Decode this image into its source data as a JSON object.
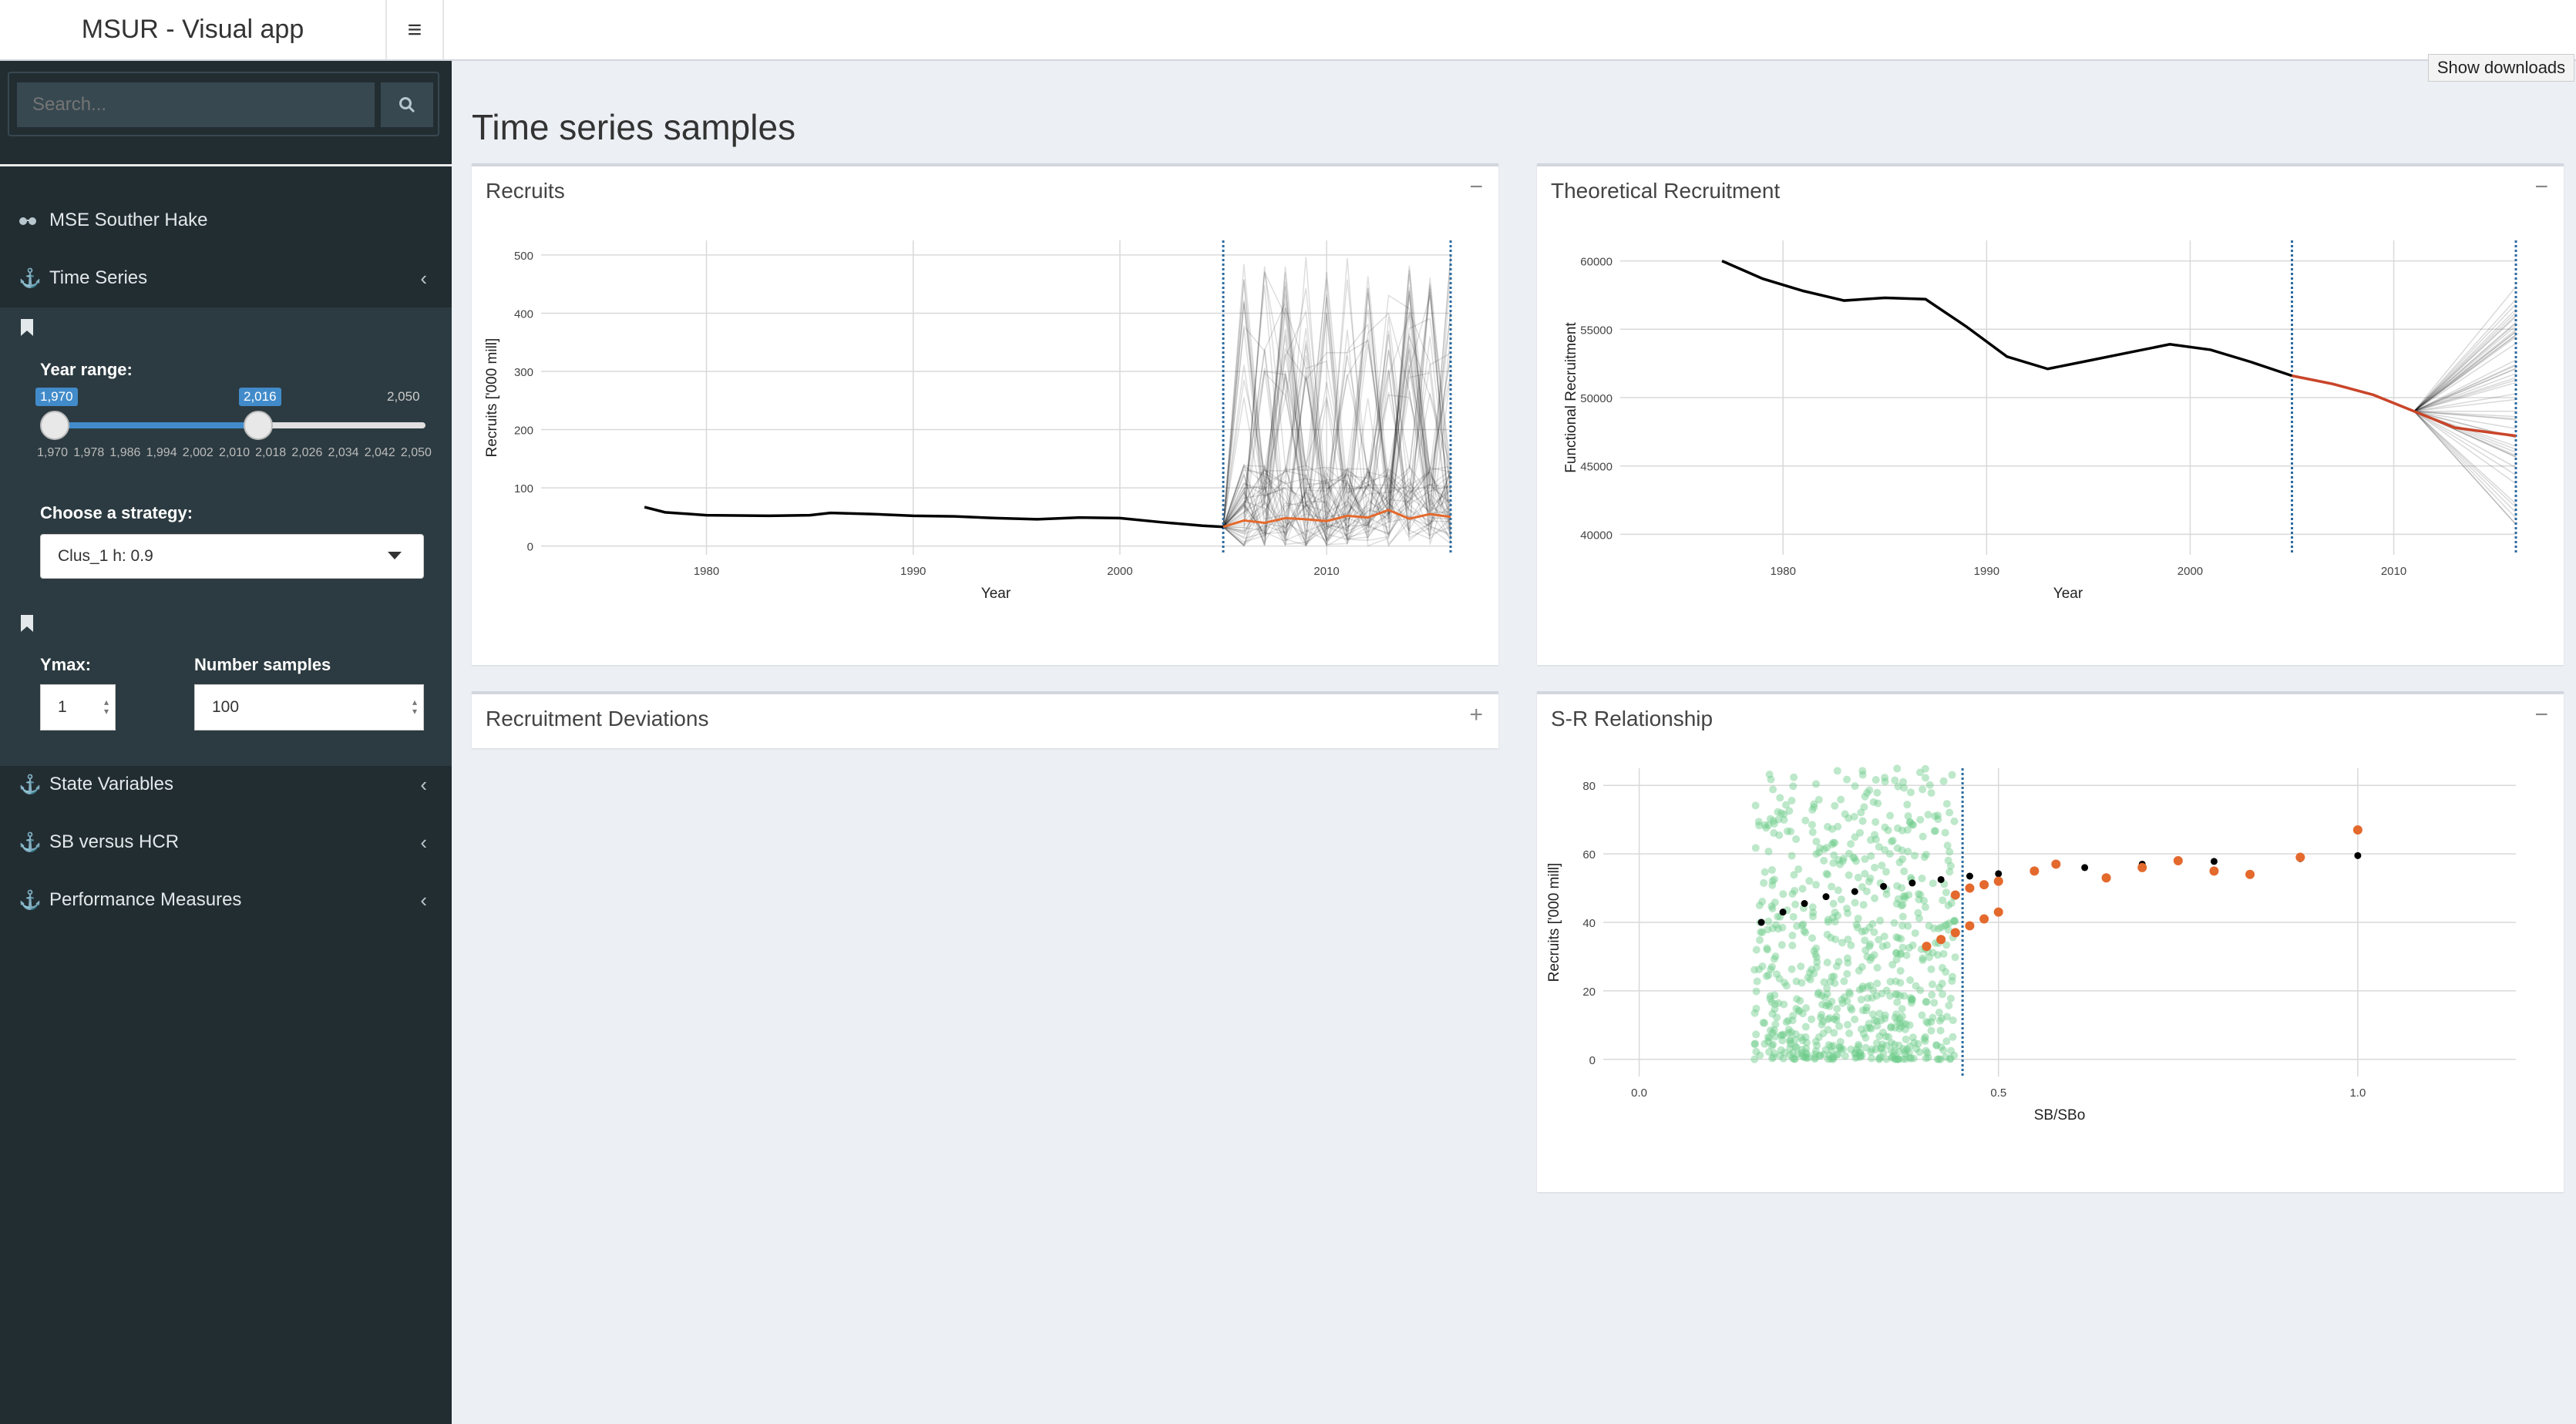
{
  "app": {
    "title": "MSUR - Visual app",
    "menu_icon": "hamburger-icon"
  },
  "sidebar": {
    "search_placeholder": "Search...",
    "items": [
      {
        "label": "MSE Souther Hake",
        "icon": "glasses-icon"
      },
      {
        "label": "Time Series",
        "icon": "anchor-icon"
      },
      {
        "label": "State Variables",
        "icon": "anchor-icon"
      },
      {
        "label": "SB versus HCR",
        "icon": "anchor-icon"
      },
      {
        "label": "Performance Measures",
        "icon": "anchor-icon"
      }
    ],
    "year_range": {
      "label": "Year range:",
      "min": 1970,
      "max": 2050,
      "from": 1970,
      "to": 2016,
      "from_label": "1,970",
      "to_label": "2,016",
      "min_label": "1,970",
      "max_label": "2,050",
      "ticks": [
        "1,970",
        "1,978",
        "1,986",
        "1,994",
        "2,002",
        "2,010",
        "2,018",
        "2,026",
        "2,034",
        "2,042",
        "2,050"
      ]
    },
    "strategy": {
      "label": "Choose a strategy:",
      "value": "Clus_1 h: 0.9"
    },
    "ymax": {
      "label": "Ymax:",
      "value": "1"
    },
    "samples": {
      "label": "Number samples",
      "value": "100"
    }
  },
  "downloads": "Show downloads",
  "main": {
    "title": "Time series samples",
    "boxes": [
      {
        "title": "Recruits",
        "tool": "−"
      },
      {
        "title": "Theoretical Recruitment",
        "tool": "−"
      },
      {
        "title": "Recruitment Deviations",
        "tool": "+"
      },
      {
        "title": "S-R Relationship",
        "tool": "−"
      }
    ]
  },
  "chart_data": [
    {
      "type": "line",
      "ylabel": "Recruits ['000 mill]",
      "xlabel": "Year",
      "xlim": [
        1972,
        2016
      ],
      "ylim": [
        -15,
        525
      ],
      "x_ticks": [
        1980,
        1990,
        2000,
        2010
      ],
      "y_ticks": [
        0,
        100,
        200,
        300,
        400,
        500
      ],
      "vlines": [
        2005,
        2016
      ],
      "series": [
        {
          "x": [
            1977,
            1978,
            1980,
            1983,
            1985,
            1986,
            1988,
            1990,
            1992,
            1994,
            1996,
            1998,
            2000,
            2002,
            2004,
            2005
          ],
          "values": [
            67,
            58,
            53,
            52,
            53,
            57,
            55,
            52,
            51,
            48,
            46,
            49,
            48,
            41,
            35,
            33
          ]
        },
        {
          "x": [
            2005,
            2006,
            2007,
            2008,
            2009,
            2010,
            2011,
            2012,
            2013,
            2014,
            2015,
            2016
          ],
          "values": [
            33,
            44,
            40,
            48,
            46,
            43,
            52,
            49,
            62,
            47,
            55,
            50
          ]
        }
      ]
    },
    {
      "type": "line",
      "ylabel": "Functional Recruitment",
      "xlabel": "Year",
      "xlim": [
        1972,
        2016
      ],
      "ylim": [
        38500,
        61500
      ],
      "x_ticks": [
        1980,
        1990,
        2000,
        2010
      ],
      "y_ticks": [
        40000,
        45000,
        50000,
        55000,
        60000
      ],
      "vlines": [
        2005,
        2016
      ],
      "series": [
        {
          "x": [
            1977,
            1979,
            1981,
            1983,
            1985,
            1987,
            1989,
            1991,
            1993,
            1995,
            1997,
            1999,
            2001,
            2003,
            2005
          ],
          "values": [
            60000,
            58700,
            57800,
            57100,
            57300,
            57200,
            55200,
            53000,
            52100,
            52700,
            53300,
            53900,
            53500,
            52600,
            51600
          ]
        },
        {
          "x": [
            2005,
            2007,
            2009,
            2011,
            2013,
            2015,
            2016
          ],
          "values": [
            51600,
            51000,
            50200,
            49000,
            47800,
            47400,
            47200
          ]
        }
      ]
    },
    {
      "type": "scatter",
      "ylabel": "Recruits ['000 mill]",
      "xlabel": "SB/SBo",
      "xlim": [
        -0.05,
        1.22
      ],
      "ylim": [
        -5,
        85
      ],
      "x_ticks": [
        0.0,
        0.5,
        1.0
      ],
      "x_tick_labels": [
        "0.0",
        "0.5",
        "1.0"
      ],
      "y_ticks": [
        0,
        20,
        40,
        60,
        80
      ],
      "vline": 0.45,
      "series": [
        {
          "name": "",
          "color": "#000000",
          "x": [
            0.17,
            0.2,
            0.23,
            0.26,
            0.3,
            0.34,
            0.38,
            0.42,
            0.46,
            0.5,
            0.55,
            0.62,
            0.7,
            0.8,
            0.92,
            1.0
          ],
          "values": [
            40,
            43,
            45.5,
            47.5,
            49,
            50.5,
            51.5,
            52.5,
            53.5,
            54.2,
            55,
            56,
            57,
            57.8,
            58.6,
            59.5
          ]
        },
        {
          "name": "",
          "color": "#e4692d",
          "x": [
            0.4,
            0.42,
            0.44,
            0.46,
            0.48,
            0.5,
            0.44,
            0.46,
            0.48,
            0.5,
            0.55,
            0.58,
            0.65,
            0.7,
            0.75,
            0.8,
            0.85,
            0.92,
            1.0
          ],
          "values": [
            33,
            35,
            37,
            39,
            41,
            43,
            48,
            50,
            51,
            52,
            55,
            57,
            53,
            56,
            58,
            55,
            54,
            59,
            67
          ]
        }
      ]
    }
  ]
}
